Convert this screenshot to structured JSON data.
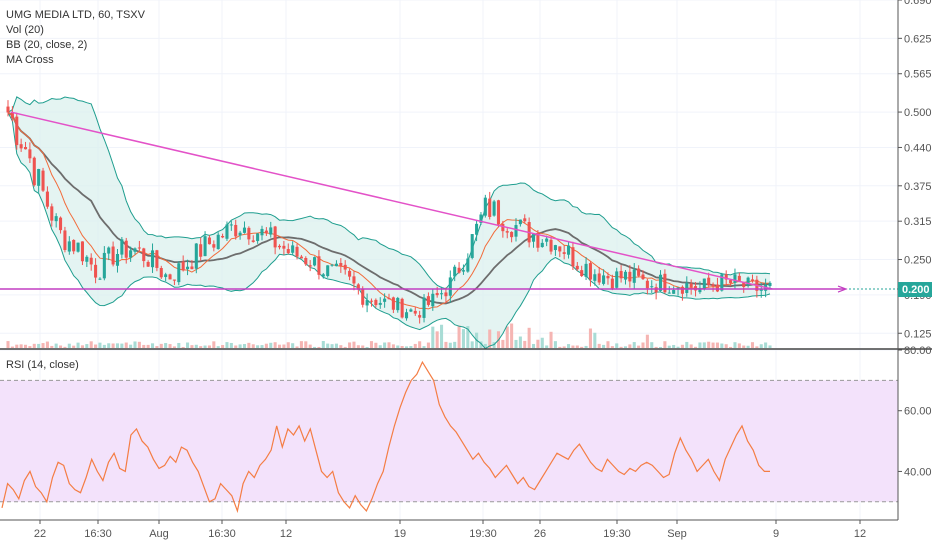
{
  "header": {
    "symbol_line": "UMG MEDIA LTD, 60, TSXV",
    "indicators": [
      "Vol (20)",
      "BB (20, close, 2)",
      "MA Cross"
    ]
  },
  "rsi_header": {
    "label": "RSI (14, close)"
  },
  "current_price": {
    "label": "0.200"
  },
  "colors": {
    "up": "#26a69a",
    "down": "#ef5350",
    "bb_band": "#1f9e8f",
    "bb_fill": "#d8f0ec",
    "ma_fast": "#f26b3a",
    "ma_slow": "#6d6d6d",
    "trendline": "#e352c8",
    "support": "#c23ec2",
    "rsi_line": "#f47d44",
    "rsi_fill": "#f3e2fb"
  },
  "chart_data": [
    {
      "type": "candlestick",
      "name": "price",
      "y_axis_ticks": [
        "0.690",
        "0.625",
        "0.565",
        "0.500",
        "0.440",
        "0.375",
        "0.315",
        "0.250",
        "0.190",
        "0.125"
      ],
      "y_range": [
        0.1,
        0.69
      ],
      "x_axis_ticks": [
        "22",
        "16:30",
        "Aug",
        "16:30",
        "12",
        "19",
        "19:30",
        "26",
        "19:30",
        "Sep",
        "9",
        "12"
      ],
      "close_path": [
        0.5,
        0.44,
        0.36,
        0.29,
        0.27,
        0.23,
        0.26,
        0.27,
        0.25,
        0.22,
        0.24,
        0.27,
        0.29,
        0.31,
        0.3,
        0.28,
        0.26,
        0.25,
        0.23,
        0.22,
        0.19,
        0.18,
        0.17,
        0.16,
        0.18,
        0.21,
        0.27,
        0.34,
        0.32,
        0.3,
        0.29,
        0.28,
        0.25,
        0.23,
        0.22,
        0.22,
        0.21,
        0.21,
        0.21,
        0.2,
        0.21,
        0.21,
        0.2,
        0.2
      ],
      "current_price": 0.2,
      "trendline": [
        [
          0.012,
          0.5
        ],
        [
          0.86,
          0.2
        ]
      ],
      "support_level": 0.2
    },
    {
      "type": "bar",
      "name": "volume"
    },
    {
      "type": "line",
      "name": "rsi",
      "y_axis_ticks": [
        "80.00",
        "60.00",
        "40.00"
      ],
      "y_range": [
        24,
        80
      ],
      "band": [
        30,
        70
      ],
      "values": [
        28,
        36,
        34,
        31,
        37,
        40,
        35,
        33,
        30,
        38,
        43,
        42,
        36,
        34,
        33,
        38,
        44,
        40,
        37,
        43,
        46,
        41,
        40,
        52,
        54,
        50,
        48,
        44,
        41,
        42,
        45,
        43,
        48,
        47,
        43,
        40,
        35,
        30,
        31,
        36,
        34,
        32,
        27,
        36,
        40,
        38,
        42,
        44,
        47,
        55,
        48,
        54,
        52,
        55,
        50,
        54,
        47,
        40,
        38,
        40,
        33,
        30,
        28,
        32,
        29,
        27,
        31,
        36,
        40,
        48,
        55,
        61,
        66,
        70,
        72,
        76,
        73,
        70,
        62,
        58,
        55,
        53,
        50,
        47,
        44,
        46,
        43,
        41,
        38,
        40,
        42,
        39,
        36,
        38,
        35,
        34,
        37,
        40,
        43,
        46,
        45,
        44,
        47,
        49,
        46,
        43,
        41,
        40,
        44,
        42,
        40,
        39,
        41,
        40,
        42,
        43,
        42,
        40,
        38,
        39,
        46,
        51,
        47,
        44,
        40,
        42,
        44,
        40,
        37,
        44,
        48,
        52,
        55,
        50,
        47,
        42,
        40,
        40
      ]
    }
  ]
}
